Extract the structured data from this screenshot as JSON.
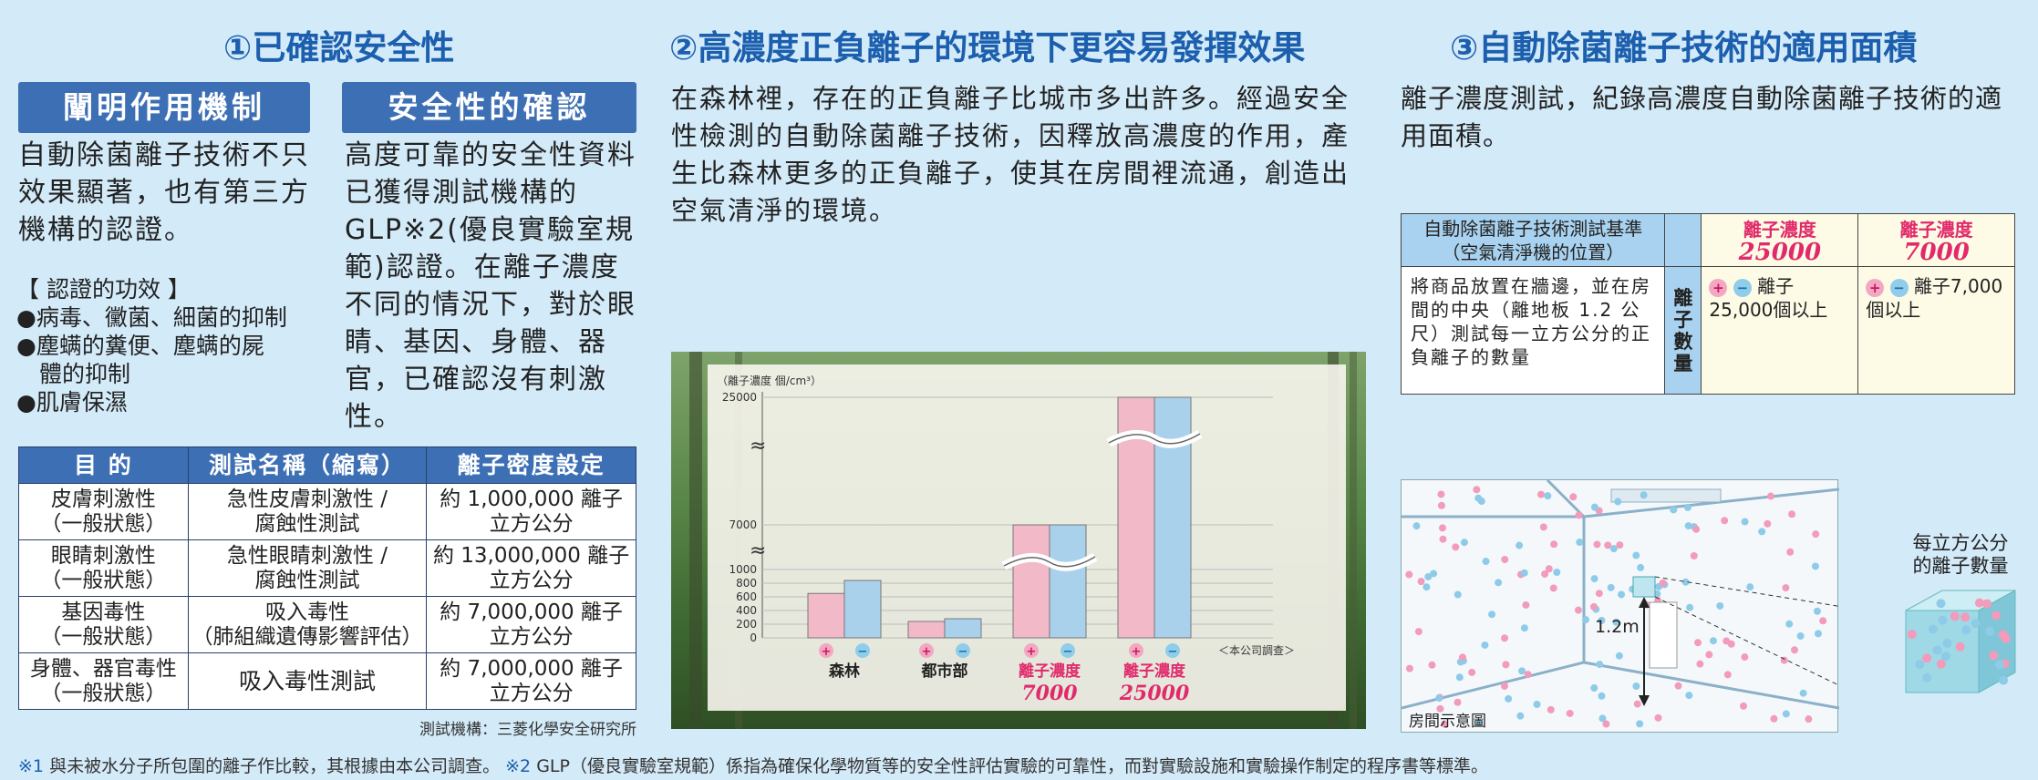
{
  "sec1": {
    "title": "①已確認安全性",
    "head_a": "闡明作用機制",
    "text_a": "自動除菌離子技術不只效果顯著，也有第三方機構的認證。",
    "effects_title": "【 認證的功效 】",
    "effects": [
      "●病毒、黴菌、細菌的抑制",
      "●塵螨的糞便、塵螨的屍",
      "　體的抑制",
      "●肌膚保濕"
    ],
    "head_b": "安全性的確認",
    "text_b": "高度可靠的安全性資料已獲得測試機構的GLP※2(優良實驗室規範)認證。在離子濃度不同的情況下，對於眼睛、基因、身體、器官，已確認沒有刺激性。",
    "table": {
      "headers": [
        "目 的",
        "測試名稱（縮寫）",
        "離子密度設定"
      ],
      "rows": [
        {
          "purpose": [
            "皮膚刺激性",
            "（一般狀態）"
          ],
          "test": [
            "急性皮膚刺激性 /",
            "腐蝕性測試"
          ],
          "density": [
            "約 1,000,000 離子",
            "立方公分"
          ]
        },
        {
          "purpose": [
            "眼睛刺激性",
            "（一般狀態）"
          ],
          "test": [
            "急性眼睛刺激性 /",
            "腐蝕性測試"
          ],
          "density": [
            "約 13,000,000 離子",
            "立方公分"
          ]
        },
        {
          "purpose": [
            "基因毒性",
            "（一般狀態）"
          ],
          "test": [
            "吸入毒性",
            "（肺組織遺傳影響評估）"
          ],
          "density": [
            "約 7,000,000 離子",
            "立方公分"
          ]
        },
        {
          "purpose": [
            "身體、器官毒性",
            "（一般狀態）"
          ],
          "test": [
            "吸入毒性測試",
            ""
          ],
          "density": [
            "約 7,000,000 離子",
            "立方公分"
          ]
        }
      ]
    },
    "test_org": "測試機構：三菱化學安全研究所"
  },
  "sec2": {
    "title": "②高濃度正負離子的環境下更容易發揮效果",
    "text": "在森林裡，存在的正負離子比城市多出許多。經過安全性檢測的自動除菌離子技術，因釋放高濃度的作用，產生比森林更多的正負離子，使其在房間裡流通，創造出空氣清淨的環境。"
  },
  "chart_data": {
    "type": "bar",
    "ylabel": "（離子濃度 個/cm³）",
    "y_ticks": [
      "0",
      "200",
      "400",
      "600",
      "800",
      "1000",
      "7000",
      "25000"
    ],
    "categories": [
      "森林",
      "都市部",
      "離子濃度 7000",
      "離子濃度 25000"
    ],
    "category_labels": [
      {
        "line1": "森林",
        "line2": ""
      },
      {
        "line1": "都市部",
        "line2": ""
      },
      {
        "line1": "離子濃度",
        "line2": "7000"
      },
      {
        "line1": "離子濃度",
        "line2": "25000"
      }
    ],
    "series": [
      {
        "name": "+",
        "color": "#f2b9c9",
        "values": [
          650,
          240,
          7000,
          25000
        ]
      },
      {
        "name": "-",
        "color": "#a9d1ec",
        "values": [
          840,
          280,
          7000,
          25000
        ]
      }
    ],
    "note": "＜本公司調查＞",
    "break_symbol": "≈"
  },
  "sec3": {
    "title": "③自動除菌離子技術的適用面積",
    "text": "離子濃度測試，紀錄高濃度自動除菌離子技術的適用面積。",
    "table": {
      "header_left": [
        "自動除菌離子技術測試基準",
        "（空氣清淨機的位置）"
      ],
      "col1_label": "離子濃度",
      "col1_value": "25000",
      "col2_label": "離子濃度",
      "col2_value": "7000",
      "body_left": "將商品放置在牆邊，並在房間的中央（離地板 1.2 公尺）測試每一立方公分的正負離子的數量",
      "mid_label": "離子數量",
      "col1_body": "離子25,000個以上",
      "col2_body": "離子7,000個以上"
    },
    "room_height": "1.2m",
    "room_caption": "房間示意圖",
    "cube_caption": [
      "每立方公分",
      "的離子數量"
    ]
  },
  "footnote": {
    "mark1": "※1",
    "text1": "與未被水分子所包圍的離子作比較，其根據由本公司調查。",
    "mark2": "※2",
    "text2": "GLP（優良實驗室規範）係指為確保化學物質等的安全性評估實驗的可靠性，而對實驗設施和實驗操作制定的程序書等標準。"
  },
  "colors": {
    "accent": "#1c5fae",
    "header_bg": "#3d6fb4",
    "pink": "#e12a6b",
    "bg": "#d3eaf8"
  }
}
